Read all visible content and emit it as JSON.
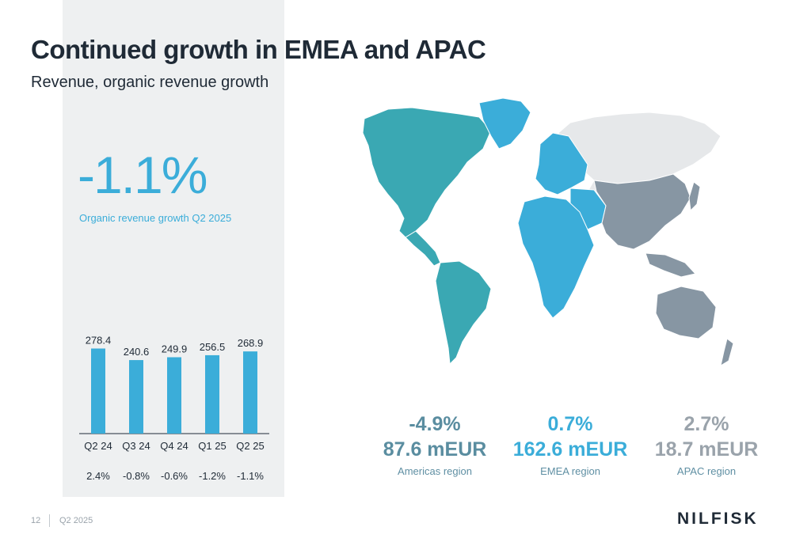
{
  "header": {
    "title": "Continued growth in EMEA and APAC",
    "subtitle": "Revenue, organic revenue growth"
  },
  "kpi": {
    "value": "-1.1%",
    "label": "Organic revenue growth Q2 2025"
  },
  "chart_data": {
    "type": "bar",
    "categories": [
      "Q2 24",
      "Q3 24",
      "Q4 24",
      "Q1 25",
      "Q2 25"
    ],
    "values": [
      278.4,
      240.6,
      249.9,
      256.5,
      268.9
    ],
    "value_labels": [
      "278.4",
      "240.6",
      "249.9",
      "256.5",
      "268.9"
    ],
    "growth_labels": [
      "2.4%",
      "-0.8%",
      "-0.6%",
      "-1.2%",
      "-1.1%"
    ],
    "title": "",
    "xlabel": "",
    "ylabel": "",
    "ylim": [
      0,
      290
    ],
    "grid": false,
    "bar_color": "#3badd9"
  },
  "regions": [
    {
      "growth": "-4.9%",
      "revenue": "87.6 mEUR",
      "name": "Americas region",
      "color": "#5a8da0"
    },
    {
      "growth": "0.7%",
      "revenue": "162.6 mEUR",
      "name": "EMEA region",
      "color": "#3badd9"
    },
    {
      "growth": "2.7%",
      "revenue": "18.7 mEUR",
      "name": "APAC region",
      "color": "#9aa3ab"
    }
  ],
  "map_colors": {
    "americas": "#3aa8b3",
    "emea": "#3badd9",
    "apac": "#8796a3",
    "other": "#e6e8ea"
  },
  "footer": {
    "page_number": "12",
    "period": "Q2 2025",
    "logo": "NILFISK"
  }
}
